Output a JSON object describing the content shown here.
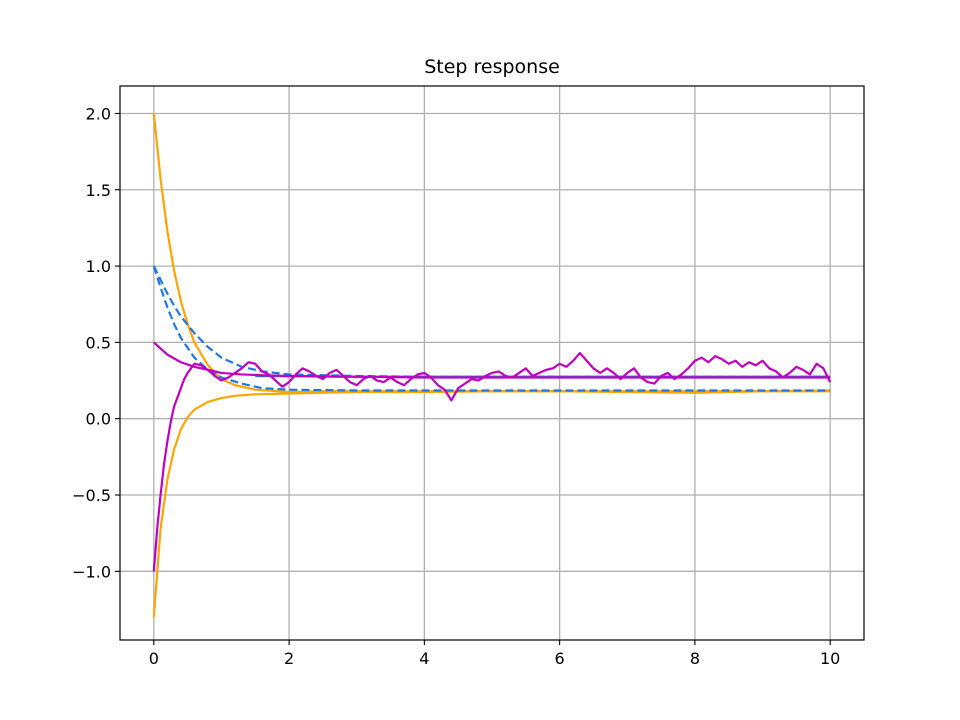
{
  "chart_data": {
    "type": "line",
    "title": "Step response",
    "xlabel": "",
    "ylabel": "",
    "xlim": [
      -0.5,
      10.5
    ],
    "ylim": [
      -1.45,
      2.18
    ],
    "xticks": [
      0,
      2,
      4,
      6,
      8,
      10
    ],
    "yticks": [
      -1.0,
      -0.5,
      0.0,
      0.5,
      1.0,
      1.5,
      2.0
    ],
    "xtick_labels": [
      "0",
      "2",
      "4",
      "6",
      "8",
      "10"
    ],
    "ytick_labels": [
      "−1.0",
      "−0.5",
      "0.0",
      "0.5",
      "1.0",
      "1.5",
      "2.0"
    ],
    "grid": true,
    "legend": "none",
    "colors": {
      "orange": "#ffa500",
      "blue": "#1f77e4",
      "magenta": "#bf00bf"
    },
    "series": [
      {
        "color": "#ffa500",
        "style": "solid",
        "x": [
          0,
          0.1,
          0.2,
          0.3,
          0.4,
          0.5,
          0.6,
          0.8,
          1.0,
          1.2,
          1.5,
          2.0,
          2.5,
          3.0,
          4.0,
          5.0,
          6.0,
          7.0,
          8.0,
          9.0,
          10.0
        ],
        "y": [
          2.0,
          1.57,
          1.23,
          0.97,
          0.77,
          0.62,
          0.5,
          0.35,
          0.26,
          0.22,
          0.19,
          0.175,
          0.18,
          0.18,
          0.18,
          0.18,
          0.18,
          0.18,
          0.18,
          0.18,
          0.18
        ]
      },
      {
        "color": "#ffa500",
        "style": "solid",
        "x": [
          0,
          0.1,
          0.2,
          0.3,
          0.4,
          0.5,
          0.6,
          0.8,
          1.0,
          1.2,
          1.5,
          2.0,
          2.5,
          3.0,
          4.0,
          5.0,
          6.0,
          7.0,
          8.0,
          9.0,
          10.0
        ],
        "y": [
          -1.3,
          -0.72,
          -0.4,
          -0.2,
          -0.07,
          0.01,
          0.06,
          0.11,
          0.135,
          0.15,
          0.16,
          0.165,
          0.17,
          0.175,
          0.175,
          0.18,
          0.18,
          0.175,
          0.17,
          0.18,
          0.185
        ]
      },
      {
        "color": "#1f77e4",
        "style": "dashed",
        "x": [
          0,
          0.1,
          0.2,
          0.3,
          0.4,
          0.6,
          0.8,
          1.0,
          1.3,
          1.6,
          2.0,
          3.0,
          4.0,
          5.0,
          6.0,
          7.0,
          8.0,
          9.0,
          10.0
        ],
        "y": [
          1.0,
          0.86,
          0.73,
          0.62,
          0.53,
          0.4,
          0.32,
          0.27,
          0.23,
          0.2,
          0.19,
          0.185,
          0.185,
          0.185,
          0.185,
          0.185,
          0.185,
          0.185,
          0.185
        ]
      },
      {
        "color": "#1f77e4",
        "style": "dashed",
        "x": [
          0,
          0.1,
          0.2,
          0.3,
          0.4,
          0.6,
          0.8,
          1.0,
          1.3,
          1.6,
          2.0,
          3.0,
          4.0,
          5.0,
          6.0,
          7.0,
          8.0,
          9.0,
          10.0
        ],
        "y": [
          1.0,
          0.91,
          0.82,
          0.74,
          0.67,
          0.56,
          0.47,
          0.4,
          0.34,
          0.31,
          0.29,
          0.28,
          0.275,
          0.275,
          0.275,
          0.275,
          0.275,
          0.275,
          0.275
        ]
      },
      {
        "color": "#1f77e4",
        "style": "solid",
        "x": [
          1.5,
          3.0,
          5.0,
          7.0,
          10.0
        ],
        "y": [
          0.28,
          0.275,
          0.275,
          0.275,
          0.275
        ]
      },
      {
        "color": "#bf00bf",
        "style": "solid",
        "x": [
          0,
          0.2,
          0.4,
          0.6,
          0.8,
          1.0,
          1.3,
          1.6,
          2.0,
          3.0,
          4.0,
          5.0,
          6.0,
          7.0,
          8.0,
          9.0,
          10.0
        ],
        "y": [
          0.5,
          0.42,
          0.37,
          0.34,
          0.32,
          0.3,
          0.29,
          0.285,
          0.28,
          0.275,
          0.27,
          0.27,
          0.27,
          0.27,
          0.27,
          0.27,
          0.27
        ]
      },
      {
        "color": "#bf00bf",
        "style": "solid",
        "x": [
          0,
          0.05,
          0.1,
          0.15,
          0.2,
          0.25,
          0.3,
          0.35,
          0.4,
          0.45,
          0.5,
          0.55,
          0.6,
          0.7,
          0.8,
          0.9,
          1.0,
          1.1,
          1.2,
          1.3,
          1.4,
          1.5,
          1.6,
          1.7,
          1.8,
          1.9,
          2.0,
          2.1,
          2.2,
          2.3,
          2.4,
          2.5,
          2.6,
          2.7,
          2.8,
          2.9,
          3.0,
          3.1,
          3.2,
          3.3,
          3.4,
          3.5,
          3.6,
          3.7,
          3.8,
          3.9,
          4.0,
          4.1,
          4.2,
          4.3,
          4.4,
          4.5,
          4.6,
          4.7,
          4.8,
          4.9,
          5.0,
          5.1,
          5.2,
          5.3,
          5.4,
          5.5,
          5.6,
          5.7,
          5.8,
          5.9,
          6.0,
          6.1,
          6.2,
          6.3,
          6.4,
          6.5,
          6.6,
          6.7,
          6.8,
          6.9,
          7.0,
          7.1,
          7.2,
          7.3,
          7.4,
          7.5,
          7.6,
          7.7,
          7.8,
          7.9,
          8.0,
          8.1,
          8.2,
          8.3,
          8.4,
          8.5,
          8.6,
          8.7,
          8.8,
          8.9,
          9.0,
          9.1,
          9.2,
          9.3,
          9.4,
          9.5,
          9.6,
          9.7,
          9.8,
          9.9,
          10.0
        ],
        "y": [
          -1.0,
          -0.72,
          -0.5,
          -0.3,
          -0.15,
          -0.02,
          0.08,
          0.14,
          0.2,
          0.26,
          0.3,
          0.33,
          0.36,
          0.35,
          0.32,
          0.28,
          0.25,
          0.27,
          0.3,
          0.33,
          0.37,
          0.36,
          0.31,
          0.29,
          0.25,
          0.21,
          0.24,
          0.29,
          0.33,
          0.31,
          0.28,
          0.26,
          0.3,
          0.32,
          0.28,
          0.24,
          0.22,
          0.26,
          0.28,
          0.25,
          0.24,
          0.27,
          0.24,
          0.22,
          0.26,
          0.29,
          0.3,
          0.27,
          0.22,
          0.19,
          0.12,
          0.2,
          0.23,
          0.26,
          0.25,
          0.28,
          0.3,
          0.31,
          0.28,
          0.27,
          0.3,
          0.33,
          0.28,
          0.3,
          0.32,
          0.33,
          0.36,
          0.34,
          0.38,
          0.43,
          0.38,
          0.33,
          0.3,
          0.33,
          0.3,
          0.26,
          0.3,
          0.33,
          0.27,
          0.24,
          0.23,
          0.28,
          0.3,
          0.26,
          0.29,
          0.33,
          0.38,
          0.4,
          0.37,
          0.41,
          0.39,
          0.36,
          0.38,
          0.34,
          0.37,
          0.35,
          0.38,
          0.33,
          0.31,
          0.27,
          0.3,
          0.34,
          0.32,
          0.29,
          0.36,
          0.33,
          0.24
        ]
      }
    ]
  }
}
